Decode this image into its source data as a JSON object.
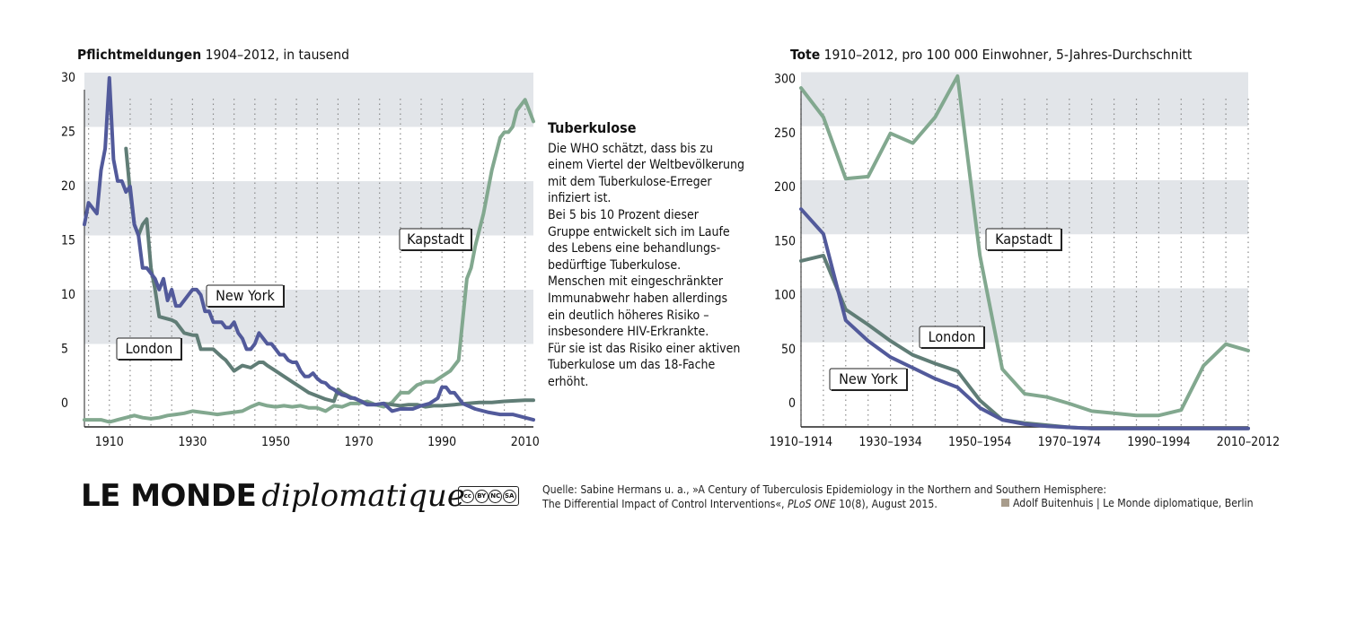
{
  "colors": {
    "new_york": "#525a9b",
    "london": "#607d76",
    "kapstadt": "#82a88f",
    "band": "#e2e5e9",
    "grid": "#8a8a8a"
  },
  "left_title": {
    "bold": "Pflichtmeldungen",
    "rest": "1904–2012, in tausend"
  },
  "right_title": {
    "bold": "Tote",
    "rest": "1910–2012, pro 100 000 Einwohner, 5-Jahres-Durchschnitt"
  },
  "info": {
    "title": "Tuberkulose",
    "lines": [
      "Die WHO schätzt, dass bis zu",
      "einem Viertel der Weltbevölkerung",
      "mit dem Tuberkulose-Erreger",
      "infiziert ist.",
      "Bei 5 bis 10 Prozent dieser",
      "Gruppe entwickelt sich im Laufe",
      "des Lebens eine behandlungs-",
      "bedürftige Tuberkulose.",
      "Menschen mit eingeschränkter",
      "Immunabwehr haben allerdings",
      "ein deutlich höheres Risiko –",
      "insbesondere HIV-Erkrankte.",
      "Für sie ist das Risiko einer aktiven",
      "Tuberkulose um das 18-Fache",
      "erhöht."
    ]
  },
  "logo": {
    "main": "LE MONDE",
    "italic": "diplomatique"
  },
  "cc_badges": [
    "cc",
    "BY",
    "NC",
    "SA"
  ],
  "source": {
    "line1": "Quelle: Sabine Hermans u. a., »A Century of Tuberculosis Epidemiology in the Northern and Southern Hemisphere:",
    "line2_pre": "The Differential Impact of Control Interventions«, ",
    "line2_journal": "PLoS ONE",
    "line2_post": " 10(8), August 2015."
  },
  "credit": "Adolf Buitenhuis | Le Monde diplomatique, Berlin",
  "chart_data": [
    {
      "type": "line",
      "title": "Pflichtmeldungen 1904–2012, in tausend",
      "xlim": [
        1904,
        2012
      ],
      "ylim": [
        -1,
        30
      ],
      "yticks": [
        0,
        5,
        10,
        15,
        20,
        25,
        30
      ],
      "xticks": [
        1910,
        1930,
        1950,
        1970,
        1990,
        2010
      ],
      "series": [
        {
          "name": "New York",
          "label_text": "New York",
          "color_key": "new_york",
          "x": [
            1904,
            1905,
            1906,
            1907,
            1908,
            1909,
            1910,
            1911,
            1912,
            1913,
            1914,
            1915,
            1916,
            1917,
            1918,
            1919,
            1920,
            1921,
            1922,
            1923,
            1924,
            1925,
            1926,
            1927,
            1928,
            1929,
            1930,
            1931,
            1932,
            1933,
            1934,
            1935,
            1936,
            1937,
            1938,
            1939,
            1940,
            1941,
            1942,
            1943,
            1944,
            1945,
            1946,
            1947,
            1948,
            1949,
            1950,
            1951,
            1952,
            1953,
            1954,
            1955,
            1956,
            1957,
            1958,
            1959,
            1960,
            1961,
            1962,
            1963,
            1964,
            1965,
            1966,
            1967,
            1968,
            1969,
            1970,
            1972,
            1974,
            1976,
            1978,
            1980,
            1983,
            1985,
            1987,
            1989,
            1990,
            1991,
            1992,
            1993,
            1995,
            1998,
            2001,
            2004,
            2007,
            2010,
            2012
          ],
          "y": [
            17,
            19,
            18.5,
            18,
            22,
            24,
            30.5,
            23,
            21,
            21,
            20,
            20.5,
            17,
            16,
            13,
            13,
            12.5,
            12,
            11,
            12,
            10,
            11,
            9.5,
            9.5,
            10,
            10.5,
            11,
            11,
            10.5,
            9,
            9,
            8,
            8,
            8,
            7.5,
            7.5,
            8,
            7,
            6.5,
            5.5,
            5.5,
            6,
            7,
            6.5,
            6,
            6,
            5.5,
            5,
            5,
            4.5,
            4.3,
            4.3,
            3.5,
            3,
            3,
            3.3,
            2.8,
            2.5,
            2.4,
            2,
            1.8,
            1.5,
            1.3,
            1.2,
            1,
            1,
            0.8,
            0.4,
            0.4,
            0.5,
            -0.2,
            0,
            0,
            0.3,
            0.5,
            1,
            2,
            2,
            1.5,
            1.5,
            0.5,
            0,
            -0.3,
            -0.5,
            -0.5,
            -0.8,
            -1
          ]
        },
        {
          "name": "London",
          "label_text": "London",
          "color_key": "london",
          "x": [
            1914,
            1915,
            1916,
            1917,
            1918,
            1919,
            1920,
            1921,
            1922,
            1925,
            1926,
            1928,
            1930,
            1931,
            1932,
            1933,
            1935,
            1937,
            1938,
            1940,
            1942,
            1944,
            1946,
            1947,
            1948,
            1950,
            1952,
            1954,
            1956,
            1958,
            1960,
            1962,
            1964,
            1965,
            1966,
            1968,
            1970,
            1972,
            1974,
            1976,
            1978,
            1980,
            1982,
            1984,
            1986,
            1988,
            1990,
            1993,
            1996,
            1999,
            2002,
            2005,
            2010,
            2012
          ],
          "y": [
            24,
            20,
            17,
            16,
            17,
            17.5,
            13,
            11,
            8.5,
            8.2,
            8,
            7,
            6.8,
            6.8,
            5.5,
            5.5,
            5.5,
            4.8,
            4.5,
            3.5,
            4,
            3.8,
            4.3,
            4.3,
            4,
            3.5,
            3,
            2.5,
            2,
            1.5,
            1.2,
            0.9,
            0.7,
            1.8,
            1.5,
            1.1,
            0.8,
            0.5,
            0.4,
            0.5,
            0.4,
            0.3,
            0.4,
            0.4,
            0.2,
            0.3,
            0.3,
            0.4,
            0.5,
            0.6,
            0.6,
            0.7,
            0.8,
            0.8
          ]
        },
        {
          "name": "Kapstadt",
          "label_text": "Kapstadt",
          "color_key": "kapstadt",
          "x": [
            1904,
            1908,
            1910,
            1912,
            1914,
            1916,
            1918,
            1920,
            1922,
            1924,
            1926,
            1928,
            1930,
            1932,
            1934,
            1936,
            1938,
            1940,
            1942,
            1944,
            1946,
            1948,
            1950,
            1952,
            1954,
            1956,
            1958,
            1960,
            1962,
            1964,
            1966,
            1968,
            1970,
            1972,
            1974,
            1976,
            1978,
            1980,
            1982,
            1984,
            1986,
            1988,
            1990,
            1992,
            1994,
            1996,
            1997,
            1998,
            2000,
            2002,
            2004,
            2005,
            2006,
            2007,
            2008,
            2009,
            2010,
            2011,
            2012
          ],
          "y": [
            -1,
            -1,
            -1.2,
            -1,
            -0.8,
            -0.6,
            -0.8,
            -0.9,
            -0.8,
            -0.6,
            -0.5,
            -0.4,
            -0.2,
            -0.3,
            -0.4,
            -0.5,
            -0.4,
            -0.3,
            -0.2,
            0.2,
            0.5,
            0.3,
            0.2,
            0.3,
            0.2,
            0.3,
            0.1,
            0.1,
            -0.2,
            0.3,
            0.2,
            0.5,
            0.5,
            0.7,
            0.4,
            0.2,
            0.6,
            1.5,
            1.5,
            2.2,
            2.5,
            2.5,
            3,
            3.5,
            4.5,
            12,
            13,
            15,
            18,
            22,
            25,
            25.5,
            25.5,
            26,
            27.5,
            28,
            28.5,
            27.5,
            26.5
          ]
        }
      ]
    },
    {
      "type": "line",
      "title": "Tote 1910–2012, pro 100 000 Einwohner, 5-Jahres-Durchschnitt",
      "categories": [
        "1910–1914",
        "1915–1919",
        "1920–1924",
        "1925–1929",
        "1930–1934",
        "1935–1939",
        "1940–1944",
        "1945–1949",
        "1950–1954",
        "1955–1959",
        "1960–1964",
        "1965–1969",
        "1970–1974",
        "1975–1979",
        "1980–1984",
        "1985–1989",
        "1990–1994",
        "1995–1999",
        "2000–2004",
        "2005–2009",
        "2010–2012"
      ],
      "tick_labels": [
        "1910–1914",
        "1930–1934",
        "1950–1954",
        "1970–1974",
        "1990–1994",
        "2010–2012"
      ],
      "ylim": [
        -20,
        300
      ],
      "yticks": [
        0,
        50,
        100,
        150,
        200,
        250,
        300
      ],
      "series": [
        {
          "name": "Kapstadt",
          "label_text": "Kapstadt",
          "color_key": "kapstadt",
          "values": [
            297,
            270,
            213,
            215,
            255,
            246,
            270,
            308,
            142,
            37,
            14,
            11,
            5,
            -2,
            -4,
            -6,
            -6,
            -1,
            40,
            60,
            54
          ]
        },
        {
          "name": "London",
          "label_text": "London",
          "color_key": "london",
          "values": [
            137,
            142,
            92,
            78,
            63,
            50,
            42,
            35,
            8,
            -10,
            -13,
            -15,
            -17,
            -18,
            -18,
            -18,
            -18,
            -18,
            -18,
            -18,
            -18
          ]
        },
        {
          "name": "New York",
          "label_text": "New York",
          "color_key": "new_york",
          "values": [
            185,
            162,
            82,
            63,
            48,
            38,
            28,
            20,
            1,
            -10,
            -14,
            -16,
            -17,
            -18,
            -18,
            -18,
            -18,
            -18,
            -18,
            -18,
            -18
          ]
        }
      ]
    }
  ]
}
